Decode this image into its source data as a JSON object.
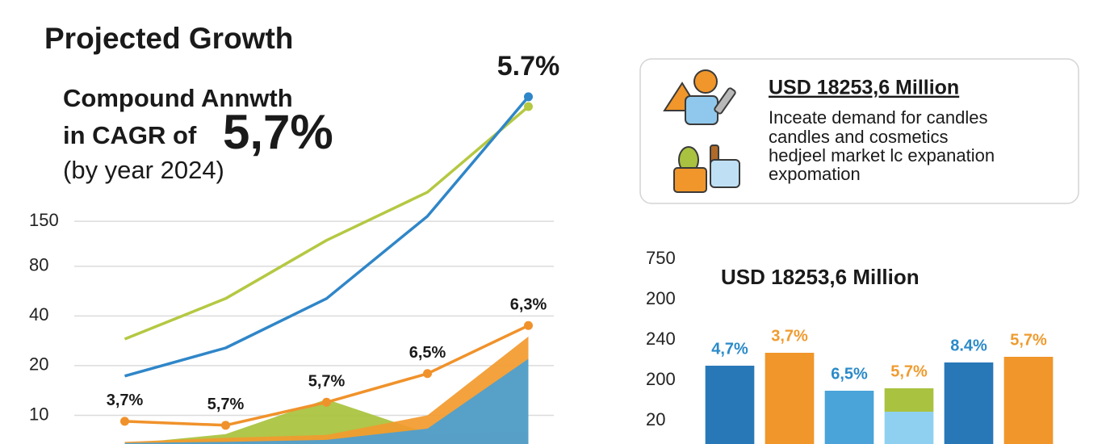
{
  "header": {
    "title": "Projected Growth",
    "subtitle_1": "Compound Annwth",
    "subtitle_2": "in CAGR of",
    "highlight": "5,7%",
    "subtitle_3": "(by year 2024)"
  },
  "card": {
    "title": "USD 18253,6 Million",
    "lines": [
      "Inceate demand for candles",
      "candles and cosmetics",
      "hedjeel market lc expanation",
      "expomation"
    ]
  },
  "chart_data": [
    {
      "type": "line",
      "annotation": "5.7%",
      "categories": [
        null,
        null,
        null,
        null,
        null
      ],
      "ylim": [
        6.7,
        1600
      ],
      "yticks": [
        150,
        80,
        40,
        20,
        10
      ],
      "log_scale": true,
      "grid": true,
      "series": [
        {
          "type": "area",
          "color": "#a8c23c",
          "values": [
            6.7,
            7.7,
            12.5,
            7.8,
            8
          ]
        },
        {
          "type": "area",
          "color": "#f29a2e",
          "values": [
            6.9,
            7.3,
            7.6,
            10,
            30
          ]
        },
        {
          "type": "area",
          "color": "#4a9fd4",
          "values": [
            6.8,
            6.9,
            7.1,
            8.3,
            22
          ]
        },
        {
          "type": "line",
          "color": "#b5c842",
          "values": [
            29,
            51,
            115,
            225,
            744
          ]
        },
        {
          "type": "line",
          "color": "#2f86c8",
          "values": [
            17.3,
            25.6,
            51,
            161,
            852
          ]
        },
        {
          "type": "line",
          "color": "#f0922b",
          "values": [
            9.2,
            8.7,
            12,
            17.9,
            35
          ],
          "annotations": [
            "3,7%",
            "5,7%",
            "5,7%",
            "6,5%",
            "6,3%"
          ]
        }
      ]
    },
    {
      "type": "bar",
      "title": "USD 18253,6 Million",
      "categories": [
        null,
        null,
        null,
        null,
        null,
        null
      ],
      "ylim": [
        -0.58,
        4
      ],
      "yticks": [
        {
          "value": 4,
          "label": "750"
        },
        {
          "value": 3,
          "label": "200"
        },
        {
          "value": 2,
          "label": "240"
        },
        {
          "value": 1,
          "label": "200"
        },
        {
          "value": 0,
          "label": "20"
        }
      ],
      "grid": false,
      "stacked": true,
      "series": [
        {
          "values": [
            1.36,
            1.68,
            0.74,
            0.22,
            1.44,
            1.58
          ],
          "colors": [
            "#2878b8",
            "#f0962a",
            "#4aa3d9",
            "#8fd0f0",
            "#2878b8",
            "#f0962a"
          ]
        },
        {
          "values": [
            null,
            null,
            null,
            0.58,
            null,
            null
          ],
          "color": "#a9c23f"
        }
      ],
      "annotations": [
        "4,7%",
        "3,7%",
        "6,5%",
        "5,7%",
        "8.4%",
        "5,7%"
      ],
      "annotation_colors": [
        "#2a8ac8",
        "#ef9b2f",
        "#2a8ac8",
        "#ef9b2f",
        "#2a8ac8",
        "#ef9b2f"
      ]
    }
  ]
}
